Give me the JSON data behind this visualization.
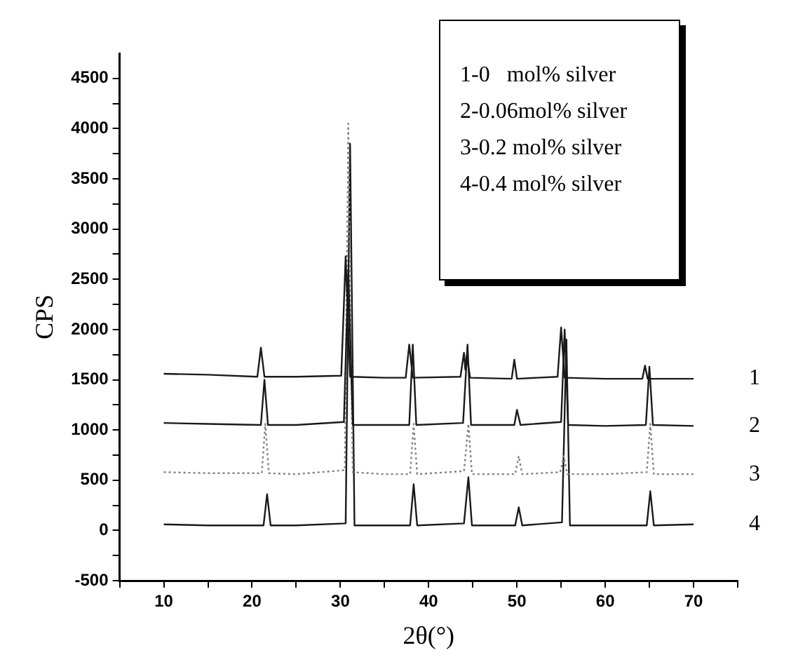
{
  "chart_data": {
    "type": "line",
    "xlabel": "2θ(°)",
    "ylabel": "CPS",
    "marker": "none",
    "xlim": [
      5,
      75
    ],
    "xticks": [
      {
        "value": 5,
        "label": null
      },
      10,
      {
        "value": 15,
        "label": null
      },
      20,
      {
        "value": 25,
        "label": null
      },
      30,
      {
        "value": 35,
        "label": null
      },
      40,
      {
        "value": 45,
        "label": null
      },
      50,
      {
        "value": 55,
        "label": null
      },
      60,
      {
        "value": 65,
        "label": null
      },
      70,
      {
        "value": 75,
        "label": null
      }
    ],
    "ylim": [
      -500,
      4750
    ],
    "yticks": [
      -500,
      {
        "value": -250,
        "label": null
      },
      0,
      {
        "value": 250,
        "label": null
      },
      500,
      {
        "value": 750,
        "label": null
      },
      1000,
      {
        "value": 1250,
        "label": null
      },
      1500,
      {
        "value": 1750,
        "label": null
      },
      2000,
      {
        "value": 2250,
        "label": null
      },
      2500,
      {
        "value": 2750,
        "label": null
      },
      3000,
      {
        "value": 3250,
        "label": null
      },
      3500,
      {
        "value": 3750,
        "label": null
      },
      4000,
      {
        "value": 4250,
        "label": null
      },
      4500
    ],
    "annotations": [
      "1-0   mol% silver",
      "2-0.06mol% silver",
      "3-0.2 mol% silver",
      "4-0.4 mol% silver"
    ],
    "series": [
      {
        "name": "1",
        "color": "#1a1a1a",
        "line_style": "solid",
        "x": [
          10,
          15,
          20.6,
          21.0,
          21.4,
          25,
          30.1,
          30.6,
          31.1,
          35,
          37.4,
          37.8,
          38.2,
          43.6,
          44.0,
          44.15,
          44.3,
          44.7,
          49.4,
          49.7,
          50.0,
          54.6,
          55.0,
          55.4,
          60,
          64.2,
          64.5,
          64.8,
          70
        ],
        "values": [
          1560,
          1550,
          1530,
          1820,
          1530,
          1530,
          1540,
          2730,
          1530,
          1520,
          1520,
          1850,
          1520,
          1530,
          1770,
          1600,
          1740,
          1520,
          1510,
          1700,
          1510,
          1530,
          2020,
          1520,
          1510,
          1510,
          1640,
          1510,
          1510
        ]
      },
      {
        "name": "2",
        "color": "#1a1a1a",
        "line_style": "solid",
        "x": [
          10,
          15,
          21.0,
          21.4,
          21.8,
          25,
          30.4,
          30.9,
          31.4,
          35,
          37.8,
          38.2,
          38.6,
          43.9,
          44.4,
          44.8,
          49.7,
          50.0,
          50.4,
          55.0,
          55.4,
          55.8,
          60,
          64.6,
          65.0,
          65.4,
          70
        ],
        "values": [
          1070,
          1060,
          1050,
          1500,
          1050,
          1050,
          1080,
          2600,
          1050,
          1050,
          1050,
          1850,
          1050,
          1070,
          1850,
          1050,
          1050,
          1200,
          1050,
          1080,
          2000,
          1050,
          1040,
          1050,
          1630,
          1050,
          1040
        ]
      },
      {
        "name": "3",
        "color": "#808080",
        "line_style": "dotted",
        "x": [
          10,
          15,
          21.1,
          21.5,
          21.9,
          25,
          30.5,
          30.9,
          31.4,
          35,
          37.9,
          38.3,
          38.7,
          44.0,
          44.5,
          44.9,
          49.8,
          50.2,
          50.6,
          54.9,
          55.3,
          55.7,
          60,
          64.7,
          65.1,
          65.5,
          70
        ],
        "values": [
          580,
          570,
          570,
          1060,
          570,
          560,
          600,
          4050,
          580,
          560,
          560,
          1060,
          560,
          590,
          1060,
          560,
          560,
          740,
          560,
          580,
          740,
          560,
          560,
          580,
          1060,
          560,
          560
        ]
      },
      {
        "name": "4",
        "color": "#1a1a1a",
        "line_style": "solid",
        "x": [
          10,
          15,
          21.3,
          21.7,
          22.1,
          25,
          30.6,
          31.1,
          31.6,
          35,
          37.9,
          38.3,
          38.7,
          44.0,
          44.5,
          44.9,
          49.8,
          50.2,
          50.6,
          55.1,
          55.6,
          56.0,
          60,
          64.7,
          65.1,
          65.5,
          70
        ],
        "values": [
          60,
          50,
          50,
          360,
          50,
          50,
          70,
          3850,
          50,
          50,
          50,
          460,
          50,
          70,
          530,
          50,
          50,
          230,
          50,
          80,
          1900,
          50,
          50,
          50,
          390,
          50,
          60
        ]
      }
    ]
  }
}
